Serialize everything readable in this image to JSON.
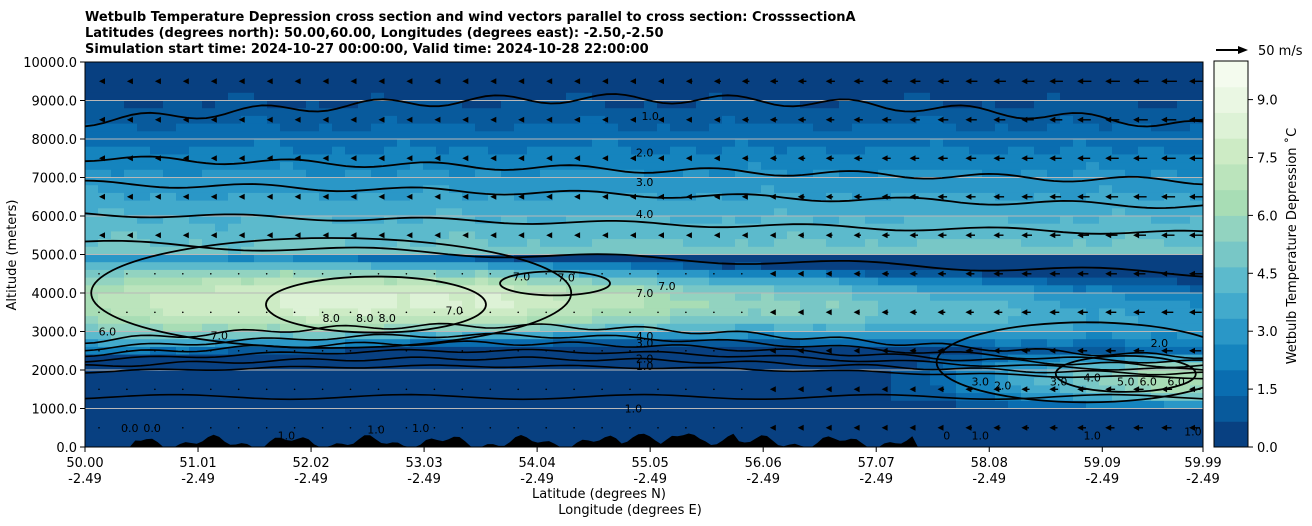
{
  "chart_data": {
    "type": "contour",
    "title_lines": [
      "Wetbulb Temperature Depression cross section and wind vectors parallel to cross section: CrosssectionA",
      "Latitudes (degrees north): 50.00,60.00, Longitudes (degrees east): -2.50,-2.50",
      "Simulation start time: 2024-10-27 00:00:00, Valid time: 2024-10-28 22:00:00"
    ],
    "xlabel": "Latitude (degrees N)",
    "xlabel2": "Longitude (degrees E)",
    "ylabel": "Altitude (meters)",
    "colorbar_label": "Wetbulb Temperature Depression ˚C",
    "xlim": [
      50.0,
      59.99
    ],
    "ylim": [
      0,
      10000
    ],
    "x_ticks": [
      {
        "lat": "50.00",
        "lon": "-2.49",
        "value": 50.0
      },
      {
        "lat": "51.01",
        "lon": "-2.49",
        "value": 51.01
      },
      {
        "lat": "52.02",
        "lon": "-2.49",
        "value": 52.02
      },
      {
        "lat": "53.03",
        "lon": "-2.49",
        "value": 53.03
      },
      {
        "lat": "54.04",
        "lon": "-2.49",
        "value": 54.04
      },
      {
        "lat": "55.05",
        "lon": "-2.49",
        "value": 55.05
      },
      {
        "lat": "56.06",
        "lon": "-2.49",
        "value": 56.06
      },
      {
        "lat": "57.07",
        "lon": "-2.49",
        "value": 57.07
      },
      {
        "lat": "58.08",
        "lon": "-2.49",
        "value": 58.08
      },
      {
        "lat": "59.09",
        "lon": "-2.49",
        "value": 59.09
      },
      {
        "lat": "59.99",
        "lon": "-2.49",
        "value": 59.99
      }
    ],
    "y_ticks": [
      {
        "label": "0.0",
        "value": 0
      },
      {
        "label": "1000.0",
        "value": 1000
      },
      {
        "label": "2000.0",
        "value": 2000
      },
      {
        "label": "3000.0",
        "value": 3000
      },
      {
        "label": "4000.0",
        "value": 4000
      },
      {
        "label": "5000.0",
        "value": 5000
      },
      {
        "label": "6000.0",
        "value": 6000
      },
      {
        "label": "7000.0",
        "value": 7000
      },
      {
        "label": "8000.0",
        "value": 8000
      },
      {
        "label": "9000.0",
        "value": 9000
      },
      {
        "label": "10000.0",
        "value": 10000
      }
    ],
    "colorbar_ticks": [
      {
        "label": "0.0",
        "value": 0.0
      },
      {
        "label": "1.5",
        "value": 1.5
      },
      {
        "label": "3.0",
        "value": 3.0
      },
      {
        "label": "4.5",
        "value": 4.5
      },
      {
        "label": "6.0",
        "value": 6.0
      },
      {
        "label": "7.5",
        "value": 7.5
      },
      {
        "label": "9.0",
        "value": 9.0
      }
    ],
    "colorbar_range": [
      0,
      10
    ],
    "colorbar_colors": [
      "#084081",
      "#085a9c",
      "#0a6db0",
      "#1584be",
      "#2a97c7",
      "#42aacc",
      "#5cbacc",
      "#78c7c6",
      "#92d3c0",
      "#a8ddb5",
      "#bbe4bc",
      "#cdebc5",
      "#ddf2d6",
      "#eaf7e3",
      "#f4fbee"
    ],
    "grid": "horizontal",
    "reference_vector": {
      "label": "50 m/s",
      "value": 50
    },
    "contour_levels": [
      0,
      1,
      2,
      3,
      4,
      5,
      6,
      7,
      8
    ],
    "contour_labels": [
      {
        "text": "1.0",
        "x": 55.05,
        "y": 8600
      },
      {
        "text": "2.0",
        "x": 55.0,
        "y": 7650
      },
      {
        "text": "3.0",
        "x": 55.0,
        "y": 6880
      },
      {
        "text": "4.0",
        "x": 55.0,
        "y": 6050
      },
      {
        "text": "7.0",
        "x": 55.0,
        "y": 4000
      },
      {
        "text": "7.0",
        "x": 55.2,
        "y": 4180
      },
      {
        "text": "7.0",
        "x": 53.9,
        "y": 4430
      },
      {
        "text": "7.0",
        "x": 54.3,
        "y": 4400
      },
      {
        "text": "7.0",
        "x": 53.3,
        "y": 3550
      },
      {
        "text": "8.0",
        "x": 52.2,
        "y": 3350
      },
      {
        "text": "8.0",
        "x": 52.5,
        "y": 3350
      },
      {
        "text": "8.0",
        "x": 52.7,
        "y": 3350
      },
      {
        "text": "7.0",
        "x": 51.2,
        "y": 2900
      },
      {
        "text": "6.0",
        "x": 50.2,
        "y": 3000
      },
      {
        "text": "4.0",
        "x": 55.0,
        "y": 2880
      },
      {
        "text": "3.0",
        "x": 55.0,
        "y": 2700
      },
      {
        "text": "2.0",
        "x": 55.0,
        "y": 2300
      },
      {
        "text": "1.0",
        "x": 55.0,
        "y": 2100
      },
      {
        "text": "1.0",
        "x": 54.9,
        "y": 1000
      },
      {
        "text": "1.0",
        "x": 52.6,
        "y": 450
      },
      {
        "text": "1.0",
        "x": 53.0,
        "y": 500
      },
      {
        "text": "1.0",
        "x": 51.8,
        "y": 300
      },
      {
        "text": "0.0",
        "x": 50.6,
        "y": 500
      },
      {
        "text": "0.0",
        "x": 50.4,
        "y": 500
      },
      {
        "text": "2.0",
        "x": 59.6,
        "y": 2700
      },
      {
        "text": "3.0",
        "x": 58.7,
        "y": 1700
      },
      {
        "text": "4.0",
        "x": 59.0,
        "y": 1800
      },
      {
        "text": "5.0",
        "x": 59.3,
        "y": 1700
      },
      {
        "text": "6.0",
        "x": 59.5,
        "y": 1700
      },
      {
        "text": "6.0",
        "x": 59.75,
        "y": 1700
      },
      {
        "text": "3.0",
        "x": 58.0,
        "y": 1700
      },
      {
        "text": "2.0",
        "x": 58.2,
        "y": 1600
      },
      {
        "text": "1.0",
        "x": 58.0,
        "y": 300
      },
      {
        "text": "1.0",
        "x": 59.0,
        "y": 300
      },
      {
        "text": "0",
        "x": 57.7,
        "y": 300
      },
      {
        "text": "1.0",
        "x": 59.9,
        "y": 400
      }
    ]
  }
}
